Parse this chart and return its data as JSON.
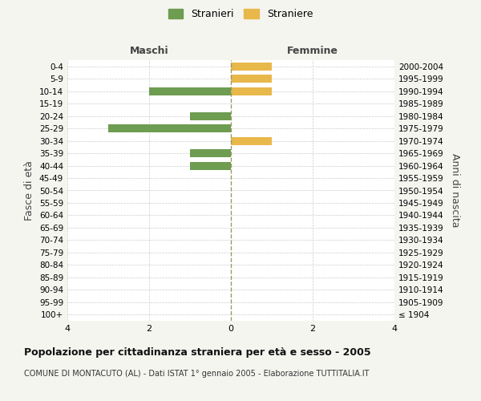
{
  "age_groups": [
    "100+",
    "95-99",
    "90-94",
    "85-89",
    "80-84",
    "75-79",
    "70-74",
    "65-69",
    "60-64",
    "55-59",
    "50-54",
    "45-49",
    "40-44",
    "35-39",
    "30-34",
    "25-29",
    "20-24",
    "15-19",
    "10-14",
    "5-9",
    "0-4"
  ],
  "birth_years": [
    "≤ 1904",
    "1905-1909",
    "1910-1914",
    "1915-1919",
    "1920-1924",
    "1925-1929",
    "1930-1934",
    "1935-1939",
    "1940-1944",
    "1945-1949",
    "1950-1954",
    "1955-1959",
    "1960-1964",
    "1965-1969",
    "1970-1974",
    "1975-1979",
    "1980-1984",
    "1985-1989",
    "1990-1994",
    "1995-1999",
    "2000-2004"
  ],
  "stranieri": [
    0,
    0,
    0,
    0,
    0,
    0,
    0,
    0,
    0,
    0,
    0,
    0,
    1,
    1,
    0,
    3,
    1,
    0,
    2,
    0,
    0
  ],
  "straniere": [
    0,
    0,
    0,
    0,
    0,
    0,
    0,
    0,
    0,
    0,
    0,
    0,
    0,
    0,
    1,
    0,
    0,
    0,
    1,
    1,
    1
  ],
  "color_stranieri": "#6e9c50",
  "color_straniere": "#e8b84b",
  "title": "Popolazione per cittadinanza straniera per età e sesso - 2005",
  "subtitle": "COMUNE DI MONTACUTO (AL) - Dati ISTAT 1° gennaio 2005 - Elaborazione TUTTITALIA.IT",
  "ylabel_left": "Fasce di età",
  "ylabel_right": "Anni di nascita",
  "xlabel_left": "Maschi",
  "xlabel_right": "Femmine",
  "legend_stranieri": "Stranieri",
  "legend_straniere": "Straniere",
  "xlim": 4,
  "background_color": "#f5f5f0",
  "plot_bg": "#ffffff",
  "grid_color": "#cccccc",
  "center_line_color": "#999966"
}
